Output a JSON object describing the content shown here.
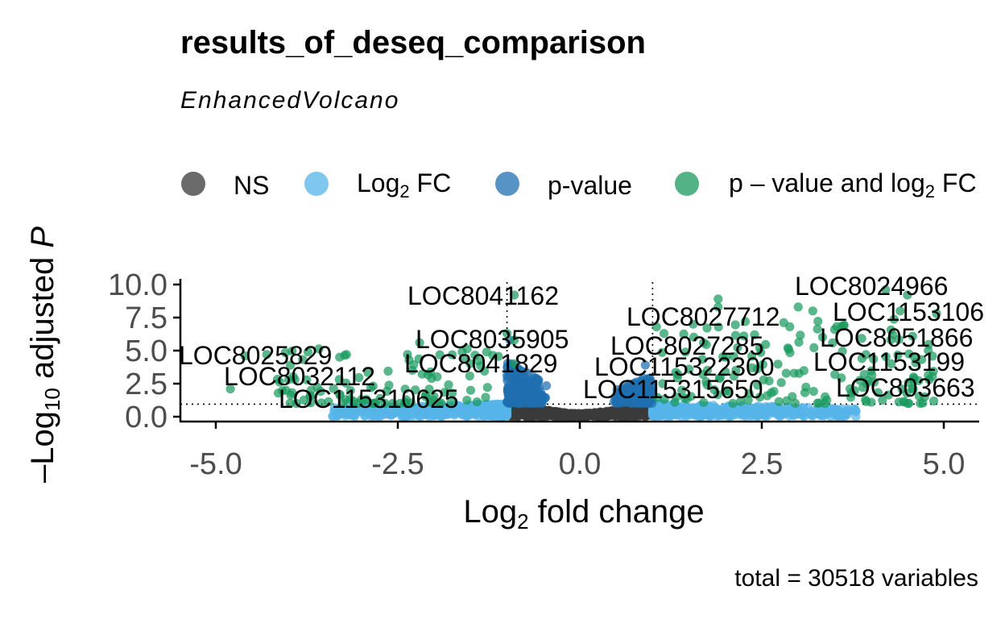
{
  "chart_data": {
    "type": "scatter",
    "title": "results_of_deseq_comparison",
    "subtitle": "EnhancedVolcano",
    "xlabel": "Log2 fold change",
    "ylabel": "-Log10 adjusted P",
    "caption": "total = 30518 variables",
    "xlim": [
      -5.5,
      5.5
    ],
    "ylim": [
      0,
      10
    ],
    "x_ticks": [
      "-5.0",
      "-2.5",
      "0.0",
      "2.5",
      "5.0"
    ],
    "y_ticks": [
      "0.0",
      "2.5",
      "5.0",
      "7.5",
      "10.0"
    ],
    "x_tick_values": [
      -5,
      -2.5,
      0,
      2.5,
      5
    ],
    "y_tick_values": [
      0,
      2.5,
      5,
      7.5,
      10
    ],
    "fc_cutoff": 1,
    "p_cutoff_neglog10": 1.0,
    "grid": false,
    "legend_position": "top",
    "legend": [
      {
        "key": "NS",
        "label": "NS",
        "color": "#3a3a3a"
      },
      {
        "key": "FC",
        "label": "Log2 FC",
        "color": "#56B4E9"
      },
      {
        "key": "P",
        "label": "p-value",
        "color": "#1f6fb0"
      },
      {
        "key": "FC_P",
        "label": "p - value and log2 FC",
        "color": "#1b9a5e"
      }
    ],
    "labeled_points": [
      {
        "label": "LOC8024966",
        "x": 4.2,
        "y": 9.6
      },
      {
        "label": "LOC1153106",
        "x": 4.4,
        "y": 8.0
      },
      {
        "label": "LOC8051866",
        "x": 4.3,
        "y": 6.2
      },
      {
        "label": "LOC1153199",
        "x": 4.6,
        "y": 4.5
      },
      {
        "label": "LOC803663",
        "x": 4.8,
        "y": 2.8
      },
      {
        "label": "LOC8041162",
        "x": -0.9,
        "y": 9.2
      },
      {
        "label": "LOC8027712",
        "x": 1.9,
        "y": 8.3
      },
      {
        "label": "LOC8035905",
        "x": -0.9,
        "y": 5.8
      },
      {
        "label": "LOC8027285",
        "x": 1.7,
        "y": 5.6
      },
      {
        "label": "LOC8041829",
        "x": -0.9,
        "y": 4.0
      },
      {
        "label": "LOC115322300",
        "x": 1.5,
        "y": 3.6
      },
      {
        "label": "LOC115315650",
        "x": 1.4,
        "y": 2.0
      },
      {
        "label": "LOC8025829",
        "x": -4.6,
        "y": 4.6
      },
      {
        "label": "LOC8032112",
        "x": -4.0,
        "y": 2.8
      },
      {
        "label": "LOC115310625",
        "x": -3.0,
        "y": 1.3
      }
    ]
  }
}
